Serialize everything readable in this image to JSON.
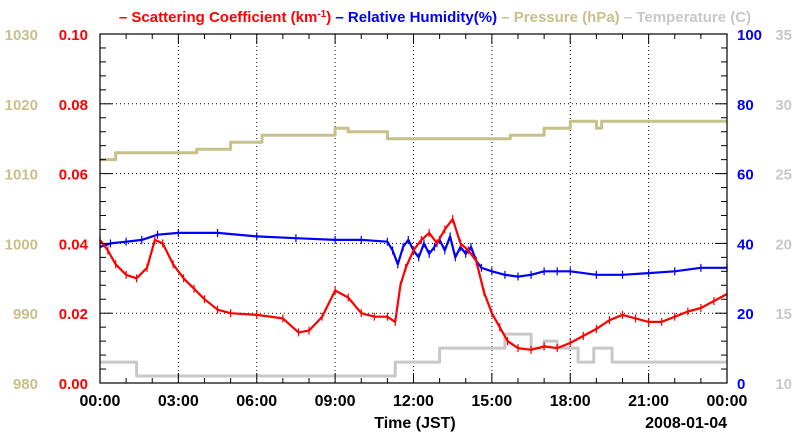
{
  "chart_data": {
    "type": "line",
    "title_parts": [
      {
        "key": "scatter",
        "dash": "–",
        "text": "Scattering Coefficient (km",
        "sup": "-1",
        "tail": ")",
        "color": "#ff0000"
      },
      {
        "key": "rh",
        "dash": "–",
        "text": "Relative Humidity(%)",
        "color": "#0000ff"
      },
      {
        "key": "press",
        "dash": "–",
        "text": "Pressure (hPa)",
        "color": "#c8c08a"
      },
      {
        "key": "temp",
        "dash": "–",
        "text": "Temperature (C)",
        "color": "#c8c8c8"
      }
    ],
    "xlabel": "Time (JST)",
    "date_label": "2008-01-04",
    "x_ticks": [
      "00:00",
      "03:00",
      "06:00",
      "09:00",
      "12:00",
      "15:00",
      "18:00",
      "21:00",
      "00:00"
    ],
    "xlim": [
      0,
      24
    ],
    "axes": {
      "pressure": {
        "ticks": [
          980,
          990,
          1000,
          1010,
          1020,
          1030
        ],
        "ylim": [
          980,
          1030
        ],
        "color": "#c8c08a"
      },
      "scatter": {
        "ticks": [
          "0.00",
          "0.02",
          "0.04",
          "0.06",
          "0.08",
          "0.10"
        ],
        "ylim": [
          0,
          0.1
        ],
        "color": "#ff0000"
      },
      "rh": {
        "ticks": [
          0,
          20,
          40,
          60,
          80,
          100
        ],
        "ylim": [
          0,
          100
        ],
        "color": "#0000ff"
      },
      "temp": {
        "ticks": [
          10,
          15,
          20,
          25,
          30,
          35
        ],
        "ylim": [
          10,
          35
        ],
        "color": "#c8c8c8"
      }
    },
    "series": [
      {
        "name": "Pressure (hPa)",
        "axis": "pressure",
        "color": "#c8c08a",
        "step": true,
        "x": [
          0,
          0.6,
          0.6,
          3.7,
          3.7,
          5,
          5,
          6.2,
          6.2,
          9,
          9,
          9.5,
          9.5,
          11,
          11,
          15.7,
          15.7,
          17,
          17,
          18,
          18,
          19,
          19,
          19.2,
          19.2,
          24
        ],
        "y": [
          1012,
          1012,
          1013,
          1013,
          1013.5,
          1013.5,
          1014.5,
          1014.5,
          1015.5,
          1015.5,
          1016.5,
          1016.5,
          1016,
          1016,
          1015,
          1015,
          1015.5,
          1015.5,
          1016.5,
          1016.5,
          1017.5,
          1017.5,
          1016.5,
          1016.5,
          1017.5,
          1017.5
        ]
      },
      {
        "name": "Temperature (C)",
        "axis": "temp",
        "color": "#c8c8c8",
        "step": true,
        "x": [
          0,
          1.4,
          1.4,
          11.3,
          11.3,
          13,
          13,
          15.5,
          15.5,
          16.5,
          16.5,
          17,
          17,
          17.5,
          17.5,
          18.3,
          18.3,
          18.9,
          18.9,
          19.6,
          19.6,
          24
        ],
        "y": [
          11.5,
          11.5,
          10.5,
          10.5,
          11.5,
          11.5,
          12.5,
          12.5,
          13.5,
          13.5,
          12.5,
          12.5,
          13,
          13,
          12.5,
          12.5,
          11.5,
          11.5,
          12.5,
          12.5,
          11.5,
          11.5
        ]
      },
      {
        "name": "Relative Humidity(%)",
        "axis": "rh",
        "color": "#0000ff",
        "x": [
          0,
          0.4,
          1,
          1.6,
          2.2,
          3,
          4.5,
          6,
          7.5,
          9,
          10,
          11,
          11.2,
          11.4,
          11.6,
          11.8,
          12,
          12.2,
          12.4,
          12.6,
          12.8,
          13,
          13.2,
          13.4,
          13.6,
          13.8,
          14,
          14.2,
          14.4,
          14.6,
          15,
          15.5,
          16,
          16.5,
          17,
          17.5,
          18,
          19,
          20,
          21,
          22,
          23,
          24
        ],
        "y": [
          39,
          40,
          40.5,
          41,
          42.5,
          43,
          43,
          42,
          41.5,
          41,
          41,
          40.5,
          38,
          34,
          39,
          41,
          38,
          36,
          40,
          37,
          39,
          41,
          38,
          42,
          36,
          39,
          37,
          39,
          35,
          33,
          32,
          31,
          30.5,
          31,
          32,
          32,
          32,
          31,
          31,
          31.5,
          32,
          33,
          33
        ]
      },
      {
        "name": "Scattering Coefficient (km-1)",
        "axis": "scatter",
        "color": "#ff0000",
        "x": [
          0,
          0.3,
          0.6,
          1,
          1.4,
          1.8,
          2.1,
          2.4,
          2.8,
          3.2,
          3.6,
          4,
          4.5,
          5,
          6,
          7,
          7.6,
          8,
          8.5,
          9,
          9.5,
          10,
          10.5,
          11,
          11.3,
          11.5,
          11.7,
          12,
          12.3,
          12.6,
          12.9,
          13.2,
          13.5,
          13.8,
          14.1,
          14.4,
          14.7,
          15,
          15.3,
          15.6,
          16,
          16.5,
          17,
          17.5,
          18,
          18.5,
          19,
          19.5,
          20,
          20.5,
          21,
          21.5,
          22,
          22.5,
          23,
          23.5,
          24
        ]
      },
      {
        "name": "_scatter_y",
        "axis": "scatter",
        "y": [
          0.041,
          0.038,
          0.034,
          0.031,
          0.03,
          0.033,
          0.041,
          0.04,
          0.034,
          0.03,
          0.027,
          0.024,
          0.021,
          0.02,
          0.0195,
          0.0185,
          0.0145,
          0.015,
          0.019,
          0.0265,
          0.0245,
          0.02,
          0.019,
          0.019,
          0.0175,
          0.028,
          0.033,
          0.038,
          0.041,
          0.043,
          0.04,
          0.044,
          0.047,
          0.04,
          0.038,
          0.035,
          0.026,
          0.02,
          0.016,
          0.012,
          0.01,
          0.0095,
          0.0105,
          0.01,
          0.0115,
          0.0135,
          0.0155,
          0.018,
          0.0195,
          0.0185,
          0.0175,
          0.0175,
          0.019,
          0.0205,
          0.0215,
          0.0235,
          0.0255
        ]
      }
    ]
  }
}
